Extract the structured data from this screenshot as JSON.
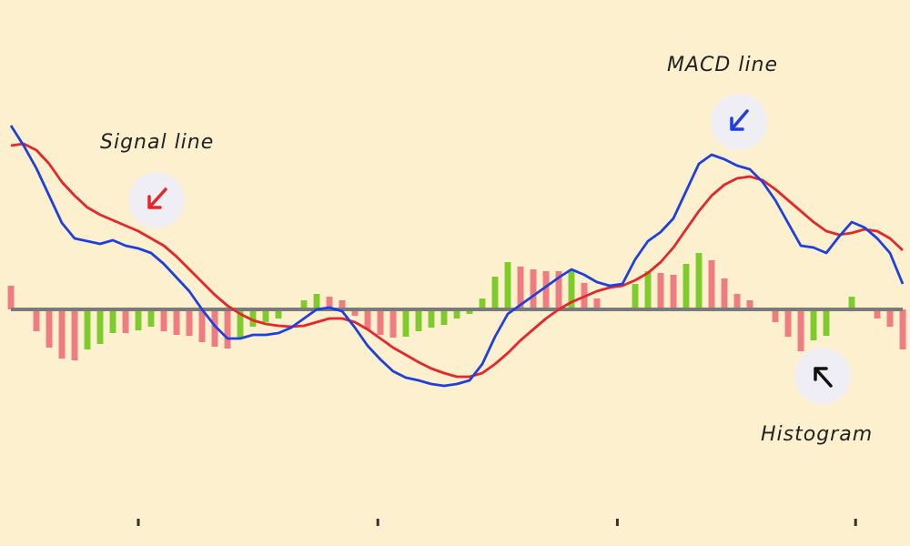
{
  "chart_data": {
    "type": "line",
    "x": [
      0,
      1,
      2,
      3,
      4,
      5,
      6,
      7,
      8,
      9,
      10,
      11,
      12,
      13,
      14,
      15,
      16,
      17,
      18,
      19,
      20,
      21,
      22,
      23,
      24,
      25,
      26,
      27,
      28,
      29,
      30,
      31,
      32,
      33,
      34,
      35,
      36,
      37,
      38,
      39,
      40,
      41,
      42,
      43,
      44,
      45,
      46,
      47,
      48,
      49,
      50,
      51,
      52,
      53,
      54,
      55,
      56,
      57,
      58,
      59,
      60,
      61,
      62,
      63,
      64,
      65,
      66,
      67,
      68,
      69,
      70
    ],
    "xlim": [
      0,
      70
    ],
    "xticks": [
      10,
      28.8,
      47.6,
      66.3
    ],
    "ylim": [
      -26,
      34
    ],
    "series": [
      {
        "name": "Histogram",
        "type": "bar",
        "colors": {
          "rising": "#7dcc2b",
          "falling": "#f07b80"
        },
        "values": [
          2.6,
          -0.2,
          -2.4,
          -4.2,
          -5.4,
          -5.6,
          -4.4,
          -3.8,
          -2.6,
          -2.6,
          -2.3,
          -1.9,
          -2.4,
          -2.8,
          -2.9,
          -3.6,
          -4.1,
          -4.3,
          -3.2,
          -1.9,
          -1.4,
          -1.0,
          -0.1,
          1.0,
          1.7,
          1.4,
          1.0,
          -0.7,
          -2.2,
          -2.8,
          -3.1,
          -3.0,
          -2.4,
          -2.0,
          -1.7,
          -1.0,
          -0.5,
          1.2,
          3.6,
          5.2,
          4.7,
          4.4,
          4.2,
          4.2,
          4.3,
          2.9,
          1.2,
          0.2,
          0.2,
          2.8,
          4.2,
          4.0,
          3.8,
          5.0,
          6.2,
          5.4,
          3.4,
          1.7,
          1.0,
          -0.2,
          -1.4,
          -3.0,
          -4.6,
          -3.4,
          -2.9,
          -0.2,
          1.4,
          0.2,
          -1.0,
          -1.9,
          -4.4
        ]
      },
      {
        "name": "Signal line",
        "type": "line",
        "color": "#e5262a",
        "values": [
          18,
          18.2,
          17.5,
          16,
          14,
          12.5,
          11.2,
          10.4,
          9.8,
          9.2,
          8.6,
          7.8,
          7,
          5.8,
          4.4,
          3,
          1.6,
          0.4,
          -0.5,
          -1.2,
          -1.6,
          -1.8,
          -1.9,
          -1.8,
          -1.4,
          -1,
          -1,
          -1.4,
          -2.2,
          -3.2,
          -4.2,
          -5,
          -5.8,
          -6.5,
          -7,
          -7.4,
          -7.4,
          -7,
          -6,
          -4.8,
          -3.4,
          -2.2,
          -1,
          0,
          0.8,
          1.4,
          2,
          2.4,
          2.6,
          3.2,
          4,
          5.2,
          6.8,
          8.8,
          10.8,
          12.5,
          13.7,
          14.4,
          14.6,
          14.2,
          13.2,
          12,
          10.8,
          9.6,
          8.6,
          8.2,
          8.4,
          8.8,
          8.6,
          7.8,
          6.5
        ]
      },
      {
        "name": "MACD line",
        "type": "line",
        "color": "#1f3fe0",
        "values": [
          20.2,
          18,
          15.5,
          12.5,
          9.5,
          7.8,
          7.5,
          7.2,
          7.6,
          7,
          6.7,
          6.2,
          5,
          3.5,
          2,
          0,
          -1.8,
          -3.2,
          -3.2,
          -2.8,
          -2.8,
          -2.6,
          -2,
          -1,
          0,
          0.2,
          -0.2,
          -2,
          -4,
          -5.5,
          -6.8,
          -7.5,
          -7.8,
          -8.2,
          -8.4,
          -8.2,
          -7.8,
          -6,
          -3,
          -0.5,
          0.5,
          1.5,
          2.5,
          3.5,
          4.4,
          3.8,
          3,
          2.6,
          2.8,
          5.5,
          7.5,
          8.5,
          10,
          13,
          16,
          17,
          16.5,
          15.8,
          15.4,
          14,
          12,
          9.5,
          7,
          6.8,
          6.2,
          8,
          9.6,
          9,
          7.8,
          6.2,
          2.8
        ]
      }
    ],
    "annotations": [
      {
        "text": "Signal line"
      },
      {
        "text": "MACD line"
      },
      {
        "text": "Histogram"
      }
    ]
  }
}
